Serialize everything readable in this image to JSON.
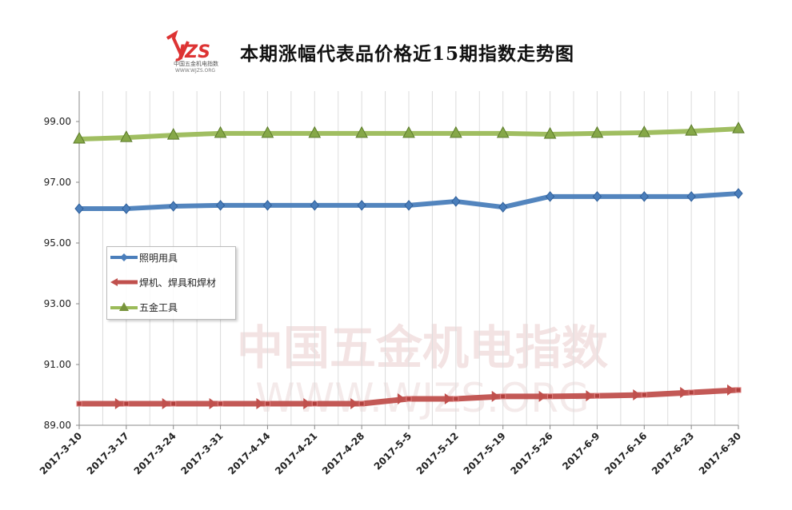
{
  "logo": {
    "text": "WJZS",
    "subtitle": "中国五金机电指数",
    "url": "WWW.WJZS.ORG"
  },
  "watermark": {
    "text": "中国五金机电指数",
    "url": "WWW.WJZS.ORG"
  },
  "chart_data": {
    "type": "line",
    "title": "本期涨幅代表品价格近15期指数走势图",
    "categories": [
      "2017-3-10",
      "2017-3-17",
      "2017-3-24",
      "2017-3-31",
      "2017-4-14",
      "2017-4-21",
      "2017-4-28",
      "2017-5-5",
      "2017-5-12",
      "2017-5-19",
      "2017-5-26",
      "2017-6-9",
      "2017-6-16",
      "2017-6-23",
      "2017-6-30"
    ],
    "ylim": [
      89,
      100
    ],
    "yticks": [
      "89.00",
      "91.00",
      "93.00",
      "95.00",
      "97.00",
      "99.00"
    ],
    "grid": "vertical",
    "legend_position": "left",
    "series": [
      {
        "name": "照明用具",
        "color": "#4A7EBB",
        "marker": "diamond",
        "values": [
          96.13,
          96.13,
          96.21,
          96.24,
          96.24,
          96.24,
          96.24,
          96.24,
          96.37,
          96.18,
          96.53,
          96.53,
          96.53,
          96.53,
          96.63
        ]
      },
      {
        "name": "焊机、焊具和焊材",
        "color": "#C0504D",
        "marker": "arrow",
        "values": [
          89.71,
          89.71,
          89.71,
          89.71,
          89.71,
          89.71,
          89.71,
          89.87,
          89.87,
          89.95,
          89.95,
          89.97,
          90.0,
          90.08,
          90.16
        ]
      },
      {
        "name": "五金工具",
        "color": "#9BBB59",
        "marker": "triangle",
        "values": [
          98.42,
          98.47,
          98.55,
          98.61,
          98.61,
          98.61,
          98.61,
          98.61,
          98.61,
          98.61,
          98.58,
          98.61,
          98.63,
          98.68,
          98.76
        ]
      }
    ]
  }
}
